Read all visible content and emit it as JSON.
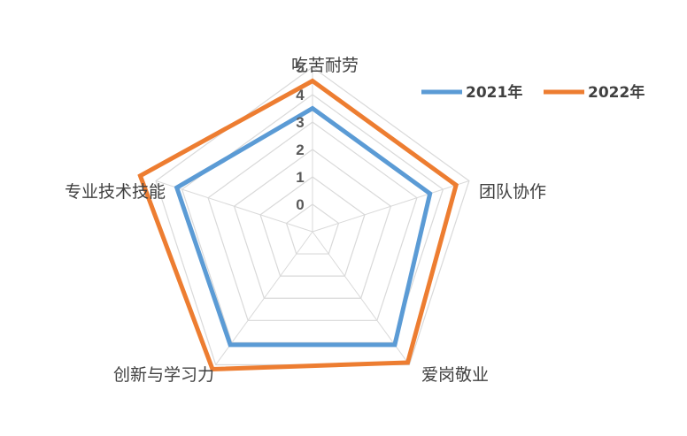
{
  "chart_data": {
    "type": "radar",
    "categories": [
      "吃苦耐劳",
      "团队协作",
      "爱岗敬业",
      "创新与学习力",
      "专业技术技能"
    ],
    "series": [
      {
        "name": "2021年",
        "values": [
          3.5,
          3.5,
          4.1,
          4.1,
          4.2
        ],
        "color": "#5B9BD5"
      },
      {
        "name": "2022年",
        "values": [
          4.5,
          4.5,
          4.9,
          5.2,
          5.6
        ],
        "color": "#ED7D31"
      }
    ],
    "rlim": [
      0,
      5
    ],
    "ticks": [
      "0",
      "1",
      "2",
      "3",
      "4",
      "5"
    ],
    "grid": true,
    "legend_position": "top-right"
  }
}
